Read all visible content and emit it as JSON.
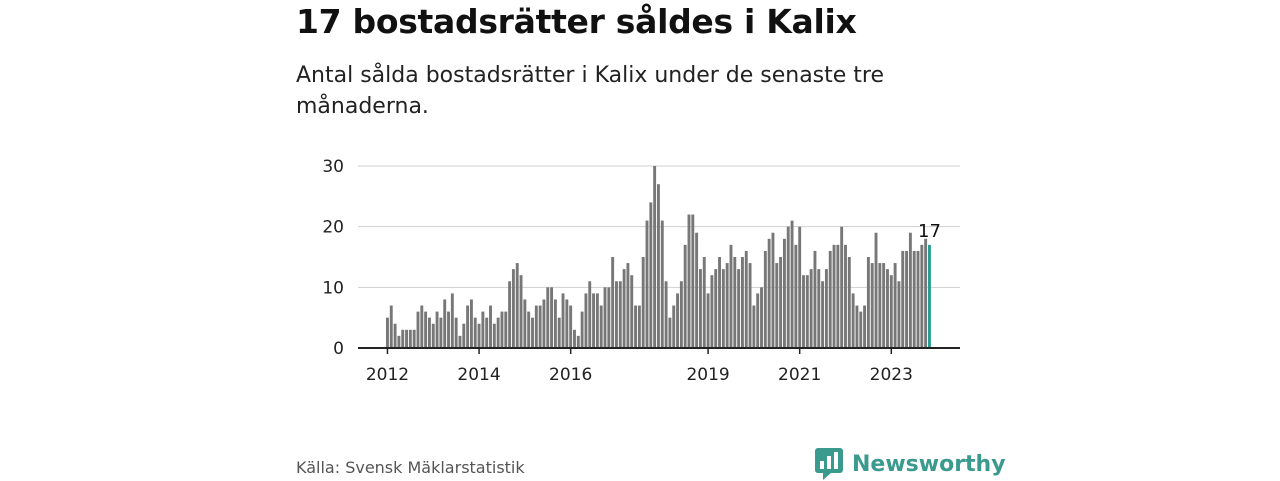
{
  "title": "17 bostadsrätter såldes i Kalix",
  "subtitle": "Antal sålda bostadsrätter i Kalix under de senaste tre månaderna.",
  "source": "Källa: Svensk Mäklarstatistik",
  "brand": "Newsworthy",
  "colors": {
    "bar": "#777777",
    "highlight": "#2a9d8f",
    "grid": "#d0d0d0",
    "axis": "#222222",
    "brand": "#3a9a8e"
  },
  "chart_data": {
    "type": "bar",
    "title": "17 bostadsrätter såldes i Kalix",
    "xlabel": "",
    "ylabel": "",
    "ylim": [
      0,
      30
    ],
    "yticks": [
      0,
      10,
      20,
      30
    ],
    "xticks": [
      {
        "label": "2012",
        "index": 0
      },
      {
        "label": "2014",
        "index": 24
      },
      {
        "label": "2016",
        "index": 48
      },
      {
        "label": "2019",
        "index": 84
      },
      {
        "label": "2021",
        "index": 108
      },
      {
        "label": "2023",
        "index": 132
      }
    ],
    "start": "2012-01",
    "frequency": "monthly",
    "highlight_index": 142,
    "highlight_label": "17",
    "values": [
      5,
      7,
      4,
      2,
      3,
      3,
      3,
      3,
      6,
      7,
      6,
      5,
      4,
      6,
      5,
      8,
      6,
      9,
      5,
      2,
      4,
      7,
      8,
      5,
      4,
      6,
      5,
      7,
      4,
      5,
      6,
      6,
      11,
      13,
      14,
      12,
      8,
      6,
      5,
      7,
      7,
      8,
      10,
      10,
      8,
      5,
      9,
      8,
      7,
      3,
      2,
      6,
      9,
      11,
      9,
      9,
      7,
      10,
      10,
      15,
      11,
      11,
      13,
      14,
      12,
      7,
      7,
      15,
      21,
      24,
      30,
      27,
      21,
      11,
      5,
      7,
      9,
      11,
      17,
      22,
      22,
      19,
      13,
      15,
      9,
      12,
      13,
      15,
      13,
      14,
      17,
      15,
      13,
      15,
      16,
      14,
      7,
      9,
      10,
      16,
      18,
      19,
      14,
      15,
      18,
      20,
      21,
      17,
      20,
      12,
      12,
      13,
      16,
      13,
      11,
      13,
      16,
      17,
      17,
      20,
      17,
      15,
      9,
      7,
      6,
      7,
      15,
      14,
      19,
      14,
      14,
      13,
      12,
      14,
      11,
      16,
      16,
      19,
      16,
      16,
      17,
      18,
      17
    ]
  }
}
